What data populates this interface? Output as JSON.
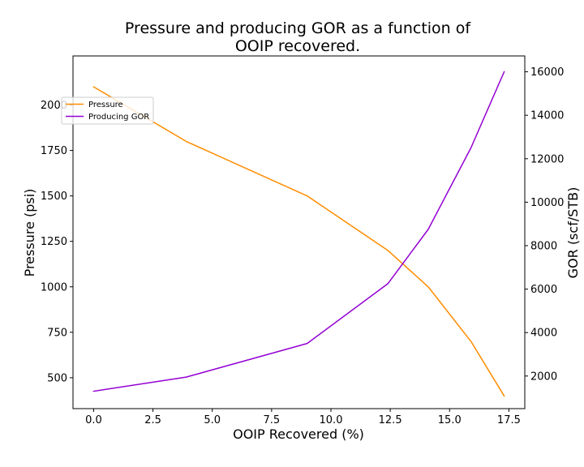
{
  "chart_data": {
    "type": "line",
    "title_lines": [
      "Pressure and producing GOR as a function of",
      "OOIP recovered."
    ],
    "xlabel": "OOIP Recovered (%)",
    "ylabel_left": "Pressure (psi)",
    "ylabel_right": "GOR (scf/STB)",
    "xlim": [
      -0.87,
      18.17
    ],
    "ylim_left": [
      330,
      2270
    ],
    "ylim_right": [
      500,
      16730
    ],
    "x_ticks": [
      0.0,
      2.5,
      5.0,
      7.5,
      10.0,
      12.5,
      15.0,
      17.5
    ],
    "x_tick_labels": [
      "0.0",
      "2.5",
      "5.0",
      "7.5",
      "10.0",
      "12.5",
      "15.0",
      "17.5"
    ],
    "y_left_ticks": [
      500,
      750,
      1000,
      1250,
      1500,
      1750,
      2000
    ],
    "y_left_tick_labels": [
      "500",
      "750",
      "1000",
      "1250",
      "1500",
      "1750",
      "2000"
    ],
    "y_right_ticks": [
      2000,
      4000,
      6000,
      8000,
      10000,
      12000,
      14000,
      16000
    ],
    "y_right_tick_labels": [
      "2000",
      "4000",
      "6000",
      "8000",
      "10000",
      "12000",
      "14000",
      "16000"
    ],
    "legend_position": "upper-left",
    "series": [
      {
        "name": "Pressure",
        "axis": "left",
        "color": "#ff8c00",
        "x": [
          0.0,
          3.9,
          9.0,
          12.4,
          14.1,
          15.9,
          17.3
        ],
        "y": [
          2100,
          1800,
          1500,
          1200,
          1000,
          700,
          400
        ]
      },
      {
        "name": "Producing GOR",
        "axis": "right",
        "color": "#9400d3",
        "x": [
          0.0,
          3.9,
          9.0,
          12.4,
          14.1,
          15.9,
          17.3
        ],
        "y": [
          1300,
          1950,
          3500,
          6250,
          8750,
          12500,
          16000
        ]
      }
    ]
  }
}
